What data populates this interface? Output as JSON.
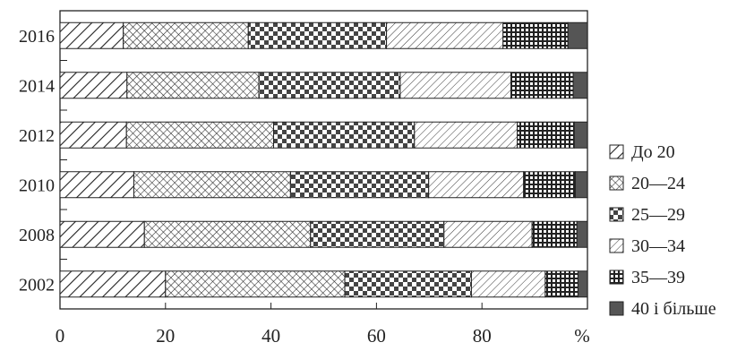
{
  "chart_data": {
    "type": "bar",
    "orientation": "horizontal",
    "stacked": true,
    "categories": [
      "2016",
      "2014",
      "2012",
      "2010",
      "2008",
      "2002"
    ],
    "xlabel": "%",
    "xlim": [
      0,
      100
    ],
    "x_ticks": [
      "0",
      "20",
      "40",
      "60",
      "80"
    ],
    "grid": false,
    "legend_position": "right",
    "series": [
      {
        "name": "До 20",
        "pattern": "diagonal-hatch",
        "values": [
          12.0,
          12.7,
          12.6,
          14.0,
          16.0,
          20.0
        ]
      },
      {
        "name": "20—24",
        "pattern": "crosshatch",
        "values": [
          23.7,
          25.0,
          27.9,
          29.7,
          31.5,
          34.0
        ]
      },
      {
        "name": "25—29",
        "pattern": "checkerboard",
        "values": [
          26.2,
          26.8,
          26.7,
          26.2,
          25.3,
          24.0
        ]
      },
      {
        "name": "30—34",
        "pattern": "light-diagonal",
        "values": [
          22.1,
          21.0,
          19.5,
          18.0,
          16.7,
          14.0
        ]
      },
      {
        "name": "35—39",
        "pattern": "grid",
        "values": [
          12.3,
          11.8,
          10.8,
          9.8,
          8.5,
          6.2
        ]
      },
      {
        "name": "40 і більше",
        "pattern": "solid-dark",
        "values": [
          3.7,
          2.7,
          2.5,
          2.3,
          2.0,
          1.8
        ]
      }
    ],
    "colors": {
      "ink": "#222222",
      "dark_fill": "#555555",
      "background": "#ffffff"
    }
  }
}
